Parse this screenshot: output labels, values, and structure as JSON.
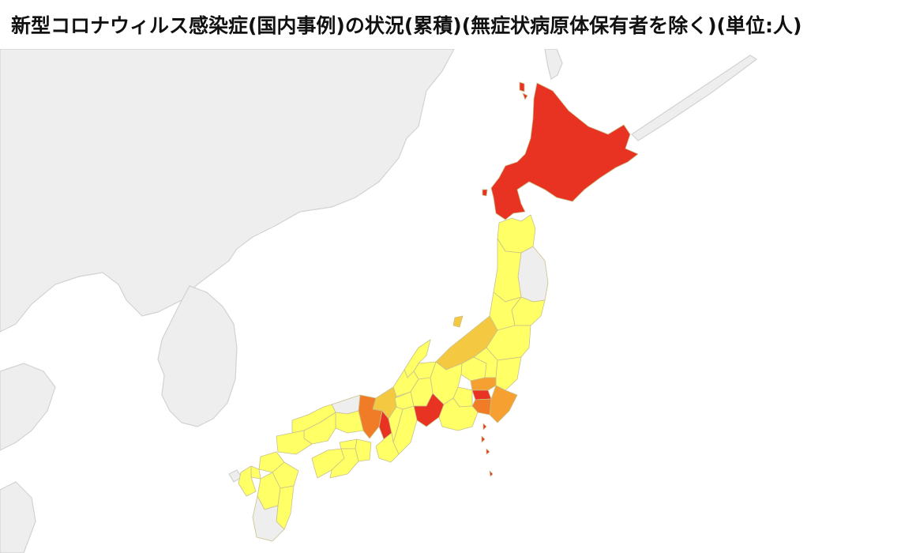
{
  "title": "新型コロナウィルス感染症(国内事例)の状況(累積)(無症状病原体保有者を除く)(単位:人)",
  "legend_colors": {
    "none": "#eeeeee",
    "low": "#ffff66",
    "low_mid": "#f8e048",
    "mid": "#f5c842",
    "mid_high": "#f5a030",
    "high": "#f07c28",
    "highest": "#e83222"
  },
  "regions": [
    {
      "name": "北海道",
      "level": "highest"
    },
    {
      "name": "青森県",
      "level": "low"
    },
    {
      "name": "岩手県",
      "level": "none"
    },
    {
      "name": "宮城県",
      "level": "low"
    },
    {
      "name": "秋田県",
      "level": "low"
    },
    {
      "name": "山形県",
      "level": "low"
    },
    {
      "name": "福島県",
      "level": "low"
    },
    {
      "name": "新潟県",
      "level": "mid"
    },
    {
      "name": "群馬県",
      "level": "low"
    },
    {
      "name": "栃木県",
      "level": "low"
    },
    {
      "name": "茨城県",
      "level": "low"
    },
    {
      "name": "埼玉県",
      "level": "mid_high"
    },
    {
      "name": "千葉県",
      "level": "mid_high"
    },
    {
      "name": "東京都",
      "level": "highest"
    },
    {
      "name": "神奈川県",
      "level": "high"
    },
    {
      "name": "山梨県",
      "level": "low"
    },
    {
      "name": "長野県",
      "level": "low"
    },
    {
      "name": "富山県",
      "level": "low"
    },
    {
      "name": "石川県",
      "level": "low"
    },
    {
      "name": "福井県",
      "level": "low"
    },
    {
      "name": "岐阜県",
      "level": "low"
    },
    {
      "name": "静岡県",
      "level": "low"
    },
    {
      "name": "愛知県",
      "level": "highest"
    },
    {
      "name": "三重県",
      "level": "low"
    },
    {
      "name": "滋賀県",
      "level": "low"
    },
    {
      "name": "京都府",
      "level": "mid"
    },
    {
      "name": "大阪府",
      "level": "highest"
    },
    {
      "name": "兵庫県",
      "level": "high"
    },
    {
      "name": "奈良県",
      "level": "low"
    },
    {
      "name": "和歌山県",
      "level": "low"
    },
    {
      "name": "鳥取県",
      "level": "none"
    },
    {
      "name": "島根県",
      "level": "low"
    },
    {
      "name": "岡山県",
      "level": "low"
    },
    {
      "name": "広島県",
      "level": "low"
    },
    {
      "name": "山口県",
      "level": "low"
    },
    {
      "name": "徳島県",
      "level": "low"
    },
    {
      "name": "香川県",
      "level": "low"
    },
    {
      "name": "愛媛県",
      "level": "low"
    },
    {
      "name": "高知県",
      "level": "low"
    },
    {
      "name": "福岡県",
      "level": "low"
    },
    {
      "name": "佐賀県",
      "level": "low"
    },
    {
      "name": "長崎県",
      "level": "low"
    },
    {
      "name": "熊本県",
      "level": "low"
    },
    {
      "name": "大分県",
      "level": "low"
    },
    {
      "name": "宮崎県",
      "level": "low"
    },
    {
      "name": "鹿児島県",
      "level": "none"
    }
  ]
}
